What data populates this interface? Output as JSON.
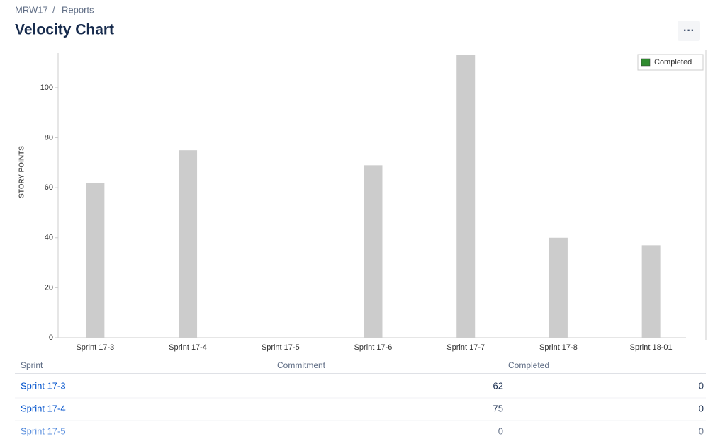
{
  "header": {
    "breadcrumb": [
      "MRW17",
      "Reports"
    ],
    "title": "Velocity Chart"
  },
  "chart_data": {
    "type": "bar",
    "ylabel": "STORY POINTS",
    "categories": [
      "Sprint 17-3",
      "Sprint 17-4",
      "Sprint 17-5",
      "Sprint 17-6",
      "Sprint 17-7",
      "Sprint 17-8",
      "Sprint 18-01"
    ],
    "series": [
      {
        "color": "#cccccc",
        "values": [
          62,
          75,
          0,
          69,
          113,
          40,
          37
        ]
      },
      {
        "name": "Completed",
        "color": "#2f8a2f",
        "values": [
          0,
          0,
          0,
          0,
          0,
          0,
          0
        ]
      }
    ],
    "ylim": [
      0,
      113
    ],
    "yticks": [
      0,
      20,
      40,
      60,
      80,
      100
    ],
    "legend": "top-right"
  },
  "table": {
    "headers": [
      "Sprint",
      "Commitment",
      "Completed"
    ],
    "rows": [
      [
        "Sprint 17-3",
        62,
        0
      ],
      [
        "Sprint 17-4",
        75,
        0
      ],
      [
        "Sprint 17-5",
        0,
        0
      ]
    ]
  }
}
